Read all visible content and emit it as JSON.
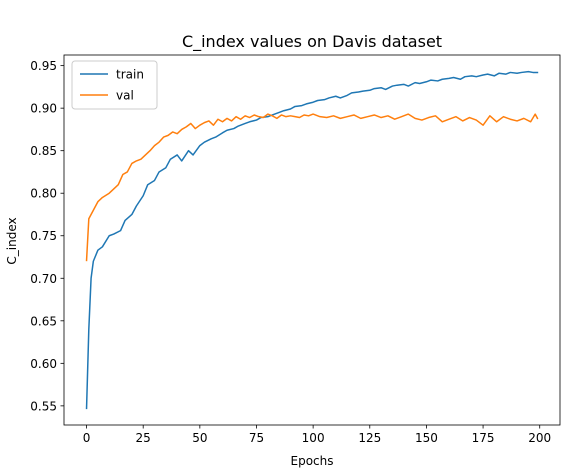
{
  "chart_data": {
    "type": "line",
    "title": "C_index values on Davis dataset",
    "xlabel": "Epochs",
    "ylabel": "C_index",
    "xlim": [
      -9.95,
      208.95
    ],
    "ylim": [
      0.5275,
      0.9625
    ],
    "xticks": [
      0,
      25,
      50,
      75,
      100,
      125,
      150,
      175,
      200
    ],
    "yticks": [
      0.55,
      0.6,
      0.65,
      0.7,
      0.75,
      0.8,
      0.85,
      0.9,
      0.95
    ],
    "xtick_labels": [
      "0",
      "25",
      "50",
      "75",
      "100",
      "125",
      "150",
      "175",
      "200"
    ],
    "ytick_labels": [
      "0.55",
      "0.60",
      "0.65",
      "0.70",
      "0.75",
      "0.80",
      "0.85",
      "0.90",
      "0.95"
    ],
    "grid": false,
    "legend": "upper-left",
    "colors": {
      "train": "#1f77b4",
      "val": "#ff7f0e"
    },
    "series": [
      {
        "name": "train",
        "x": [
          0,
          1,
          2,
          3,
          5,
          7,
          10,
          12,
          15,
          17,
          20,
          22,
          25,
          27,
          30,
          32,
          35,
          37,
          40,
          42,
          45,
          47,
          50,
          52,
          55,
          57,
          60,
          62,
          65,
          67,
          70,
          72,
          75,
          77,
          80,
          82,
          85,
          87,
          90,
          92,
          95,
          97,
          100,
          102,
          105,
          107,
          110,
          112,
          115,
          117,
          120,
          122,
          125,
          127,
          130,
          132,
          135,
          137,
          140,
          142,
          145,
          147,
          150,
          152,
          155,
          157,
          160,
          162,
          165,
          167,
          170,
          172,
          175,
          177,
          180,
          182,
          185,
          187,
          190,
          192,
          195,
          197,
          199
        ],
        "y": [
          0.547,
          0.64,
          0.7,
          0.72,
          0.733,
          0.737,
          0.75,
          0.752,
          0.756,
          0.768,
          0.775,
          0.785,
          0.797,
          0.81,
          0.815,
          0.825,
          0.83,
          0.84,
          0.845,
          0.838,
          0.85,
          0.845,
          0.856,
          0.86,
          0.864,
          0.866,
          0.871,
          0.874,
          0.876,
          0.879,
          0.882,
          0.884,
          0.886,
          0.889,
          0.89,
          0.892,
          0.895,
          0.897,
          0.899,
          0.902,
          0.903,
          0.905,
          0.907,
          0.909,
          0.91,
          0.912,
          0.914,
          0.912,
          0.915,
          0.918,
          0.919,
          0.92,
          0.921,
          0.923,
          0.924,
          0.922,
          0.926,
          0.927,
          0.928,
          0.926,
          0.93,
          0.929,
          0.931,
          0.933,
          0.932,
          0.934,
          0.935,
          0.936,
          0.934,
          0.937,
          0.938,
          0.937,
          0.939,
          0.94,
          0.938,
          0.941,
          0.94,
          0.942,
          0.941,
          0.942,
          0.943,
          0.942,
          0.942
        ]
      },
      {
        "name": "val",
        "x": [
          0,
          1,
          2,
          3,
          5,
          7,
          10,
          12,
          14,
          16,
          18,
          20,
          22,
          24,
          26,
          28,
          30,
          32,
          34,
          36,
          38,
          40,
          42,
          44,
          46,
          48,
          50,
          52,
          54,
          56,
          58,
          60,
          62,
          64,
          66,
          68,
          70,
          72,
          74,
          76,
          78,
          80,
          82,
          84,
          86,
          88,
          90,
          92,
          94,
          96,
          98,
          100,
          103,
          106,
          109,
          112,
          115,
          118,
          121,
          124,
          127,
          130,
          133,
          136,
          139,
          142,
          145,
          148,
          151,
          154,
          157,
          160,
          163,
          166,
          169,
          172,
          175,
          178,
          181,
          184,
          187,
          190,
          193,
          196,
          198,
          199
        ],
        "y": [
          0.721,
          0.77,
          0.775,
          0.78,
          0.79,
          0.795,
          0.8,
          0.805,
          0.81,
          0.822,
          0.825,
          0.835,
          0.838,
          0.84,
          0.845,
          0.85,
          0.856,
          0.86,
          0.866,
          0.868,
          0.872,
          0.87,
          0.875,
          0.878,
          0.882,
          0.876,
          0.88,
          0.883,
          0.885,
          0.88,
          0.887,
          0.884,
          0.888,
          0.885,
          0.89,
          0.887,
          0.891,
          0.889,
          0.892,
          0.89,
          0.889,
          0.893,
          0.891,
          0.888,
          0.892,
          0.89,
          0.891,
          0.89,
          0.889,
          0.892,
          0.891,
          0.893,
          0.89,
          0.889,
          0.891,
          0.888,
          0.89,
          0.892,
          0.888,
          0.89,
          0.892,
          0.889,
          0.891,
          0.887,
          0.89,
          0.893,
          0.888,
          0.886,
          0.889,
          0.891,
          0.884,
          0.887,
          0.89,
          0.885,
          0.889,
          0.886,
          0.88,
          0.891,
          0.884,
          0.89,
          0.887,
          0.885,
          0.888,
          0.884,
          0.893,
          0.888
        ]
      }
    ]
  }
}
